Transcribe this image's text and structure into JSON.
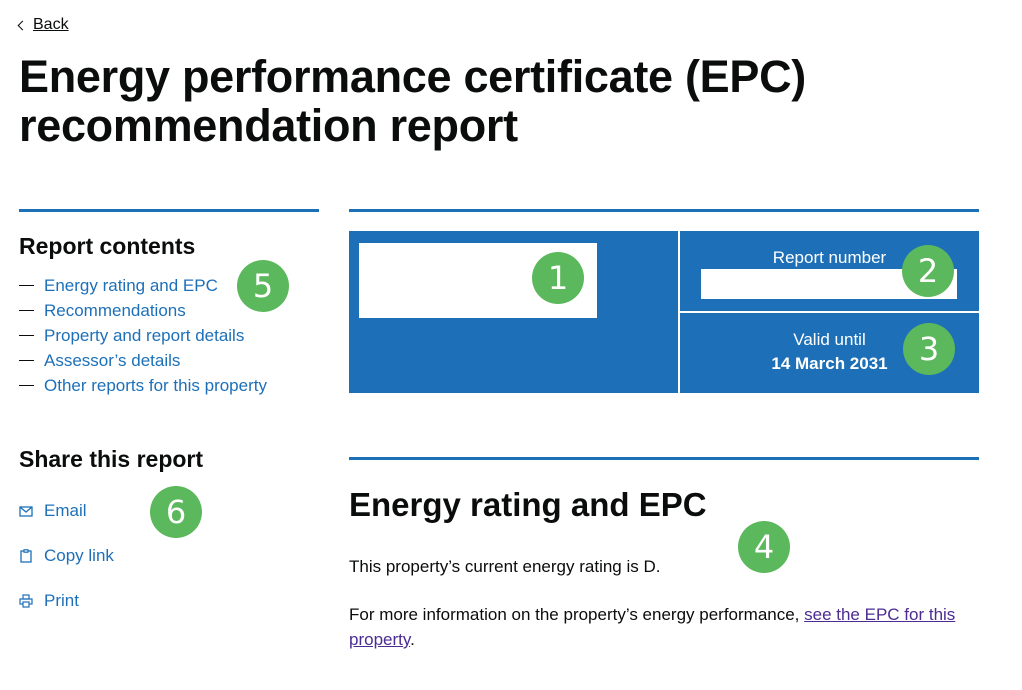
{
  "back": {
    "label": "Back"
  },
  "page": {
    "title": "Energy performance certificate (EPC) recommendation report"
  },
  "sidebar": {
    "contents_heading": "Report contents",
    "contents": [
      {
        "label": "Energy rating and EPC"
      },
      {
        "label": "Recommendations"
      },
      {
        "label": "Property and report details"
      },
      {
        "label": "Assessor’s details"
      },
      {
        "label": "Other reports for this property"
      }
    ],
    "share_heading": "Share this report",
    "share": [
      {
        "label": "Email",
        "icon": "envelope-icon"
      },
      {
        "label": "Copy link",
        "icon": "clipboard-icon"
      },
      {
        "label": "Print",
        "icon": "printer-icon"
      }
    ]
  },
  "summary": {
    "report_number_label": "Report number",
    "valid_until_label": "Valid until",
    "valid_until_value": "14 March 2031"
  },
  "section": {
    "heading": "Energy rating and EPC",
    "rating_text": "This property’s current energy rating is D.",
    "more_info_prefix": "For more information on the property’s energy performance, ",
    "more_info_link": "see the EPC for this property",
    "more_info_suffix": "."
  },
  "annotations": [
    "1",
    "2",
    "3",
    "4",
    "5",
    "6"
  ],
  "colors": {
    "brand_blue": "#1d70b8",
    "link_visited": "#4c2c92",
    "annotation_green": "#5cb85c"
  }
}
